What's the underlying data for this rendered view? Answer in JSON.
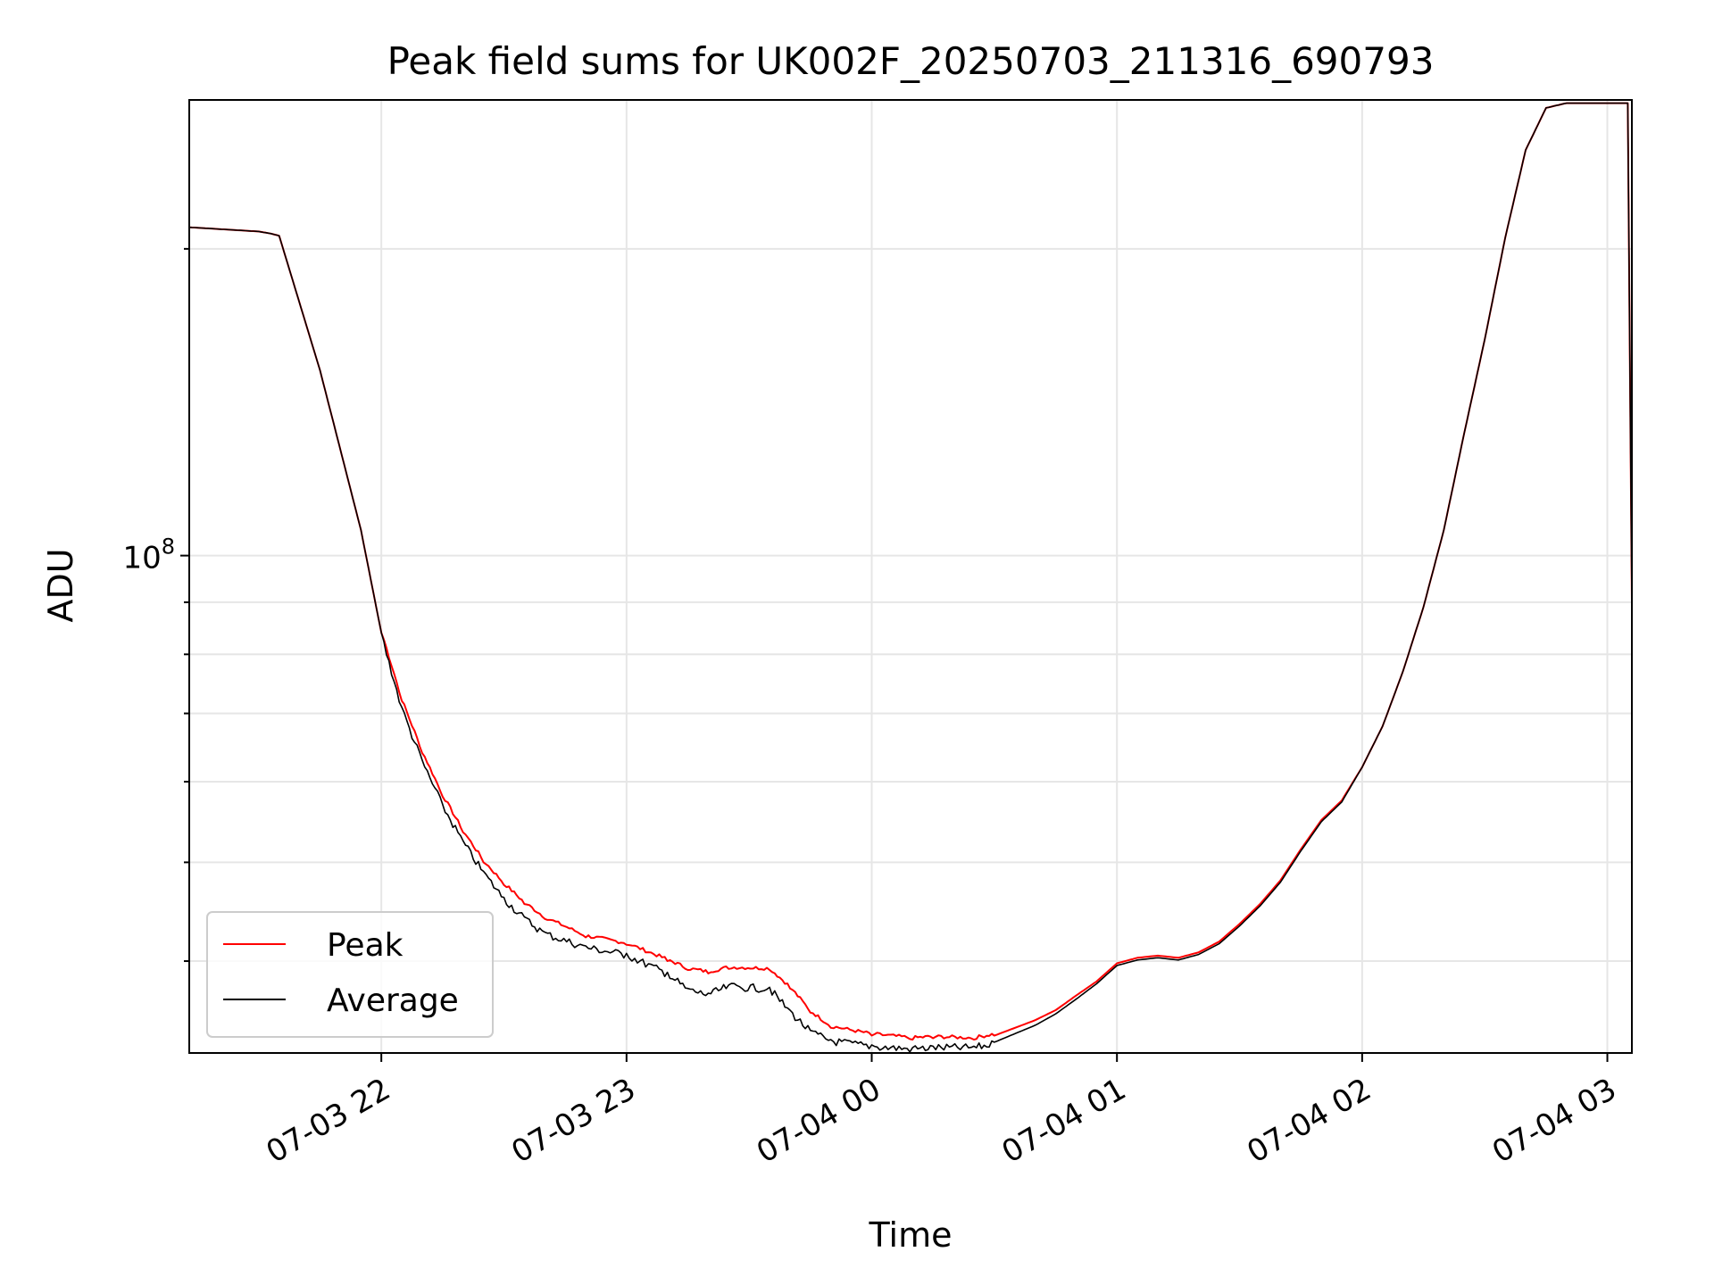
{
  "chart_data": {
    "type": "line",
    "title": "Peak field sums for UK002F_20250703_211316_690793",
    "xlabel": "Time",
    "ylabel": "ADU",
    "y_scale": "log",
    "grid": true,
    "legend_position": "lower-left",
    "x_ticks": [
      "07-03 22",
      "07-03 23",
      "07-04 00",
      "07-04 01",
      "07-04 02",
      "07-04 03"
    ],
    "x_tick_times": [
      "2025-07-03 22:00",
      "2025-07-03 23:00",
      "2025-07-04 00:00",
      "2025-07-04 01:00",
      "2025-07-04 02:00",
      "2025-07-04 03:00"
    ],
    "xlim": [
      "2025-07-03 21:13",
      "2025-07-04 03:06"
    ],
    "ylim": [
      32500000,
      280000000
    ],
    "y_ticks": [
      {
        "value": 100000000,
        "label": "10",
        "exponent": "8"
      }
    ],
    "series": [
      {
        "name": "Peak",
        "color": "#ff0000",
        "points": [
          [
            "2025-07-03 21:13",
            210000000
          ],
          [
            "2025-07-03 21:30",
            208000000
          ],
          [
            "2025-07-03 21:33",
            207000000
          ],
          [
            "2025-07-03 21:35",
            206000000
          ],
          [
            "2025-07-03 21:45",
            152000000
          ],
          [
            "2025-07-03 21:55",
            106000000
          ],
          [
            "2025-07-03 22:00",
            84000000
          ],
          [
            "2025-07-03 22:05",
            72000000
          ],
          [
            "2025-07-03 22:10",
            64000000
          ],
          [
            "2025-07-03 22:15",
            58000000
          ],
          [
            "2025-07-03 22:20",
            53500000
          ],
          [
            "2025-07-03 22:25",
            50000000
          ],
          [
            "2025-07-03 22:30",
            47500000
          ],
          [
            "2025-07-03 22:35",
            45500000
          ],
          [
            "2025-07-03 22:40",
            44000000
          ],
          [
            "2025-07-03 22:50",
            42200000
          ],
          [
            "2025-07-03 23:00",
            41500000
          ],
          [
            "2025-07-03 23:10",
            40000000
          ],
          [
            "2025-07-03 23:15",
            39200000
          ],
          [
            "2025-07-03 23:20",
            38900000
          ],
          [
            "2025-07-03 23:25",
            39300000
          ],
          [
            "2025-07-03 23:35",
            39200000
          ],
          [
            "2025-07-03 23:40",
            37600000
          ],
          [
            "2025-07-03 23:45",
            35600000
          ],
          [
            "2025-07-03 23:50",
            34400000
          ],
          [
            "2025-07-04 00:00",
            33800000
          ],
          [
            "2025-07-04 00:10",
            33500000
          ],
          [
            "2025-07-04 00:15",
            33600000
          ],
          [
            "2025-07-04 00:25",
            33500000
          ],
          [
            "2025-07-04 00:30",
            33800000
          ],
          [
            "2025-07-04 00:40",
            35000000
          ],
          [
            "2025-07-04 00:45",
            35800000
          ],
          [
            "2025-07-04 00:50",
            37000000
          ],
          [
            "2025-07-04 00:55",
            38200000
          ],
          [
            "2025-07-04 01:00",
            39800000
          ],
          [
            "2025-07-04 01:05",
            40300000
          ],
          [
            "2025-07-04 01:10",
            40500000
          ],
          [
            "2025-07-04 01:15",
            40300000
          ],
          [
            "2025-07-04 01:20",
            40800000
          ],
          [
            "2025-07-04 01:25",
            41800000
          ],
          [
            "2025-07-04 01:30",
            43500000
          ],
          [
            "2025-07-04 01:35",
            45500000
          ],
          [
            "2025-07-04 01:40",
            48000000
          ],
          [
            "2025-07-04 01:45",
            51500000
          ],
          [
            "2025-07-04 01:50",
            55000000
          ],
          [
            "2025-07-04 01:55",
            57500000
          ],
          [
            "2025-07-04 02:00",
            62000000
          ],
          [
            "2025-07-04 02:05",
            68000000
          ],
          [
            "2025-07-04 02:10",
            77000000
          ],
          [
            "2025-07-04 02:15",
            89000000
          ],
          [
            "2025-07-04 02:20",
            106000000
          ],
          [
            "2025-07-04 02:25",
            132000000
          ],
          [
            "2025-07-04 02:30",
            163000000
          ],
          [
            "2025-07-04 02:35",
            205000000
          ],
          [
            "2025-07-04 02:40",
            250000000
          ],
          [
            "2025-07-04 02:45",
            275000000
          ],
          [
            "2025-07-04 02:50",
            278000000
          ],
          [
            "2025-07-04 03:05",
            278000000
          ],
          [
            "2025-07-04 03:06",
            90000000
          ]
        ]
      },
      {
        "name": "Average",
        "color": "#000000",
        "points": [
          [
            "2025-07-03 21:13",
            210000000
          ],
          [
            "2025-07-03 21:30",
            208000000
          ],
          [
            "2025-07-03 21:33",
            207000000
          ],
          [
            "2025-07-03 21:35",
            206000000
          ],
          [
            "2025-07-03 21:45",
            152000000
          ],
          [
            "2025-07-03 21:55",
            106000000
          ],
          [
            "2025-07-03 22:00",
            84000000
          ],
          [
            "2025-07-03 22:05",
            71000000
          ],
          [
            "2025-07-03 22:10",
            63000000
          ],
          [
            "2025-07-03 22:15",
            57000000
          ],
          [
            "2025-07-03 22:20",
            52500000
          ],
          [
            "2025-07-03 22:25",
            49000000
          ],
          [
            "2025-07-03 22:30",
            46200000
          ],
          [
            "2025-07-03 22:35",
            44200000
          ],
          [
            "2025-07-03 22:40",
            42700000
          ],
          [
            "2025-07-03 22:50",
            41400000
          ],
          [
            "2025-07-03 23:00",
            40700000
          ],
          [
            "2025-07-03 23:10",
            39000000
          ],
          [
            "2025-07-03 23:15",
            37600000
          ],
          [
            "2025-07-03 23:20",
            37200000
          ],
          [
            "2025-07-03 23:25",
            37900000
          ],
          [
            "2025-07-03 23:35",
            37700000
          ],
          [
            "2025-07-03 23:40",
            35800000
          ],
          [
            "2025-07-03 23:45",
            34200000
          ],
          [
            "2025-07-03 23:50",
            33500000
          ],
          [
            "2025-07-04 00:00",
            33100000
          ],
          [
            "2025-07-04 00:10",
            32900000
          ],
          [
            "2025-07-04 00:15",
            33000000
          ],
          [
            "2025-07-04 00:25",
            33000000
          ],
          [
            "2025-07-04 00:30",
            33300000
          ],
          [
            "2025-07-04 00:40",
            34600000
          ],
          [
            "2025-07-04 00:45",
            35500000
          ],
          [
            "2025-07-04 00:50",
            36700000
          ],
          [
            "2025-07-04 00:55",
            38000000
          ],
          [
            "2025-07-04 01:00",
            39600000
          ],
          [
            "2025-07-04 01:05",
            40100000
          ],
          [
            "2025-07-04 01:10",
            40300000
          ],
          [
            "2025-07-04 01:15",
            40100000
          ],
          [
            "2025-07-04 01:20",
            40600000
          ],
          [
            "2025-07-04 01:25",
            41600000
          ],
          [
            "2025-07-04 01:30",
            43300000
          ],
          [
            "2025-07-04 01:35",
            45300000
          ],
          [
            "2025-07-04 01:40",
            47800000
          ],
          [
            "2025-07-04 01:45",
            51300000
          ],
          [
            "2025-07-04 01:50",
            54800000
          ],
          [
            "2025-07-04 01:55",
            57300000
          ],
          [
            "2025-07-04 02:00",
            62000000
          ],
          [
            "2025-07-04 02:05",
            68000000
          ],
          [
            "2025-07-04 02:10",
            77000000
          ],
          [
            "2025-07-04 02:15",
            89000000
          ],
          [
            "2025-07-04 02:20",
            106000000
          ],
          [
            "2025-07-04 02:25",
            132000000
          ],
          [
            "2025-07-04 02:30",
            163000000
          ],
          [
            "2025-07-04 02:35",
            205000000
          ],
          [
            "2025-07-04 02:40",
            250000000
          ],
          [
            "2025-07-04 02:45",
            275000000
          ],
          [
            "2025-07-04 02:50",
            278000000
          ],
          [
            "2025-07-04 03:05",
            278000000
          ],
          [
            "2025-07-04 03:06",
            90000000
          ]
        ]
      }
    ]
  }
}
